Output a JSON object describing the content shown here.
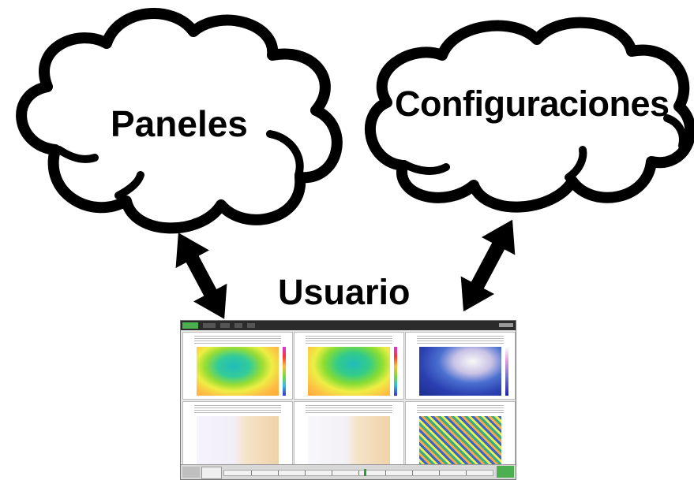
{
  "labels": {
    "paneles": "Paneles",
    "configuraciones": "Configuraciones",
    "usuario": "Usuario"
  },
  "colors": {
    "outline": "#000000",
    "fill": "#ffffff",
    "accent_green": "#4caf50"
  },
  "icons": {
    "left_arrow": "double-headed-arrow-icon",
    "right_arrow": "double-headed-arrow-icon"
  },
  "screenshot": {
    "panels": [
      {
        "kind": "height-field-green-yellow"
      },
      {
        "kind": "height-field-green-yellow"
      },
      {
        "kind": "blue-magenta-field"
      },
      {
        "kind": "contour-map-white"
      },
      {
        "kind": "contour-map-white"
      },
      {
        "kind": "colorful-wind-field"
      }
    ]
  }
}
